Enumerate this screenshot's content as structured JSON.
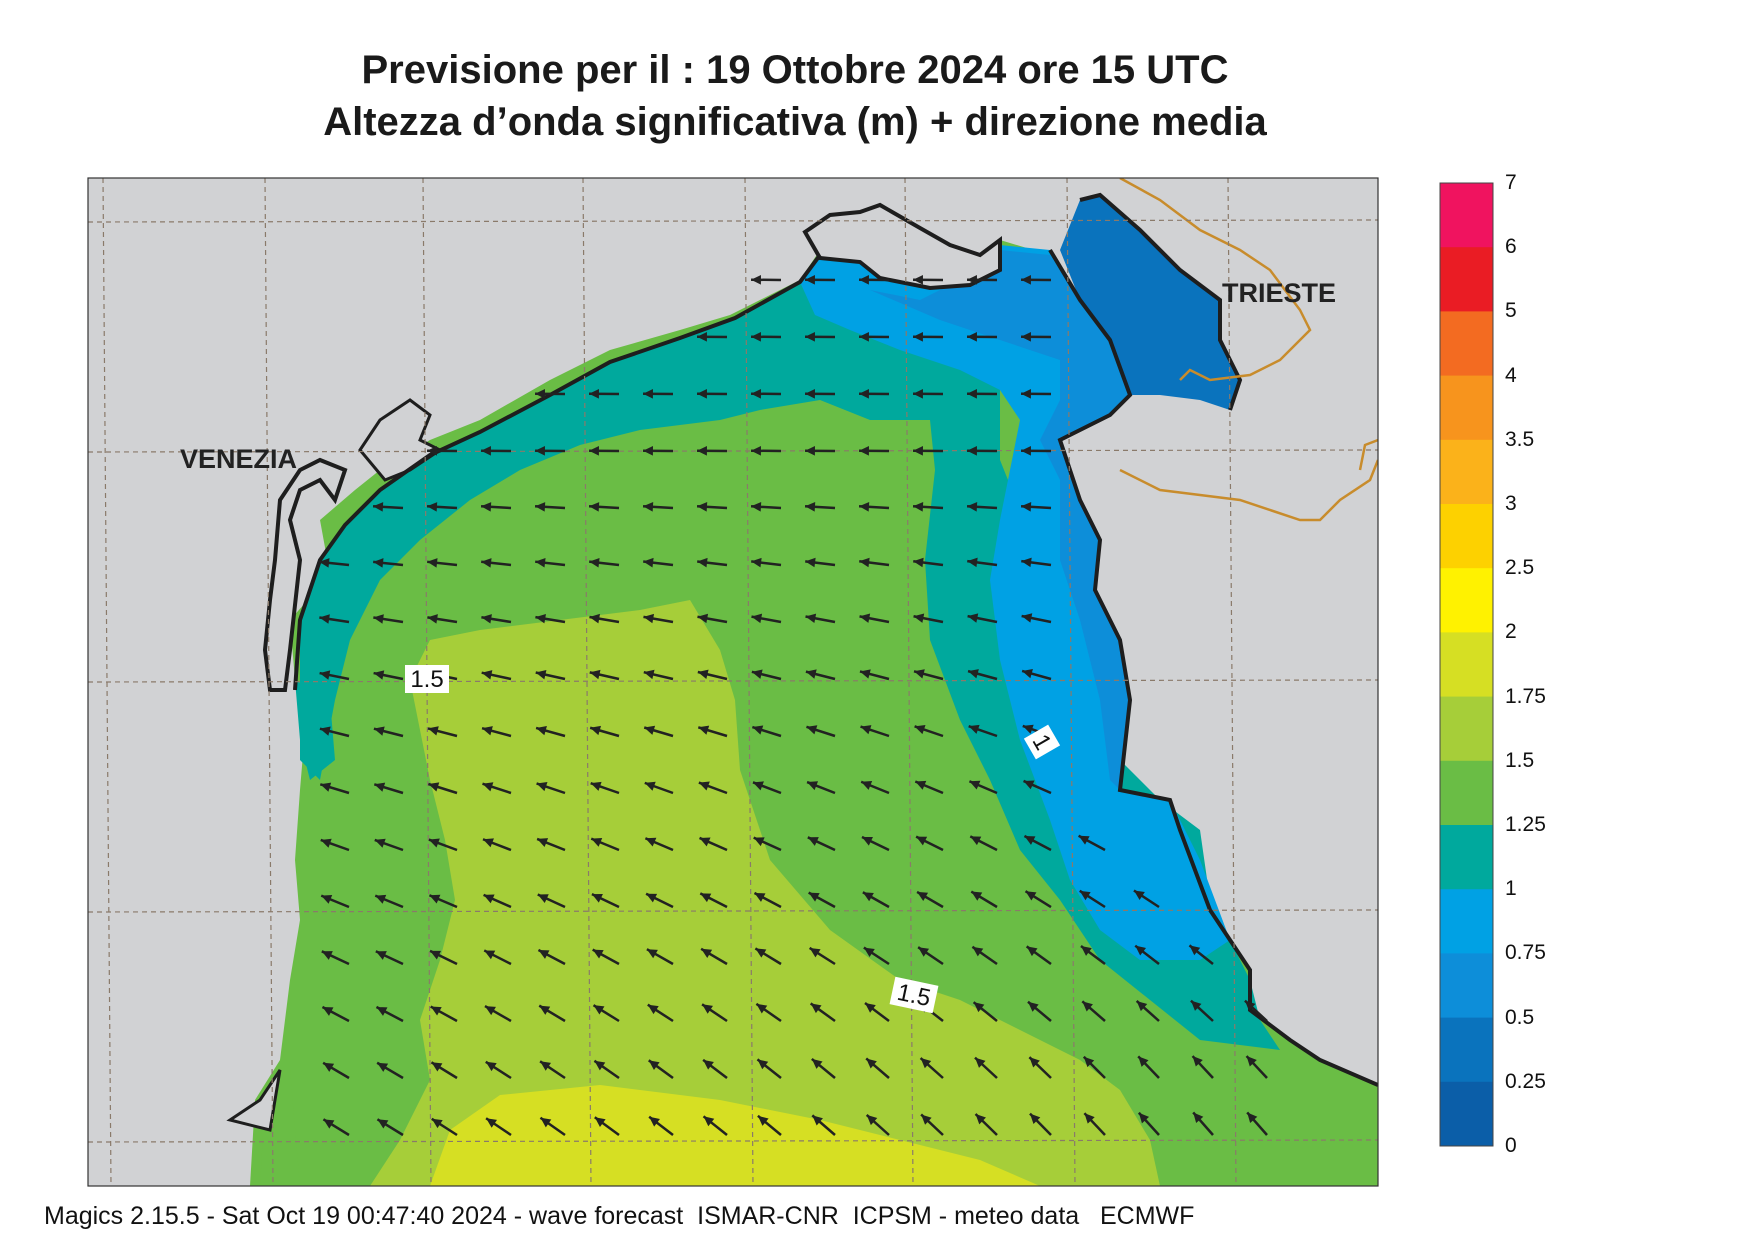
{
  "title_line1": "Previsione per il  :  19  Ottobre  2024   ore 15 UTC",
  "title_line2": "Altezza d’onda significativa (m) + direzione media",
  "footer": "Magics 2.15.5 - Sat Oct 19 00:47:40 2024 - wave forecast  ISMAR-CNR  ICPSM - meteo data   ECMWF",
  "places": {
    "venezia": "VENEZIA",
    "trieste": "TRIESTE"
  },
  "contour_labels": {
    "upper": "1.5",
    "lower": "1.5",
    "east": "1"
  },
  "colorbar": {
    "labels": [
      "7",
      "6",
      "5",
      "4",
      "3.5",
      "3",
      "2.5",
      "2",
      "1.75",
      "1.5",
      "1.25",
      "1",
      "0.75",
      "0.5",
      "0.25",
      "0"
    ],
    "colors": [
      "#f0135f",
      "#ea1c24",
      "#f36b21",
      "#f7941d",
      "#fbb21a",
      "#fdd100",
      "#fff200",
      "#d6df23",
      "#a6ce39",
      "#6abd45",
      "#00a99d",
      "#00a1e4",
      "#0d8ed9",
      "#0a73bd",
      "#0b5ea8"
    ]
  },
  "colors": {
    "land": "#d1d2d4",
    "coast": "#1e1e1e",
    "arrow": "#222222",
    "border": "#c88c2c",
    "grid": "#8a7a6a"
  }
}
